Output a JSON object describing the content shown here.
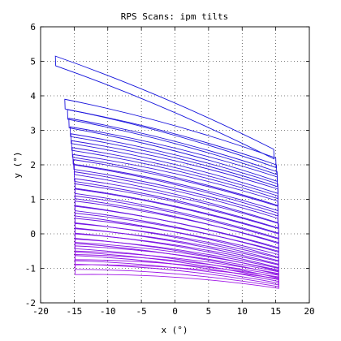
{
  "chart_data": {
    "type": "line",
    "title": "RPS Scans: ipm tilts",
    "xlabel": "x (°)",
    "ylabel": "y (°)",
    "xlim": [
      -20,
      20
    ],
    "ylim": [
      -2,
      6
    ],
    "xticks": [
      -20,
      -15,
      -10,
      -5,
      0,
      5,
      10,
      15,
      20
    ],
    "yticks": [
      -2,
      -1,
      0,
      1,
      2,
      3,
      4,
      5,
      6
    ],
    "grid": true,
    "color_start": "#1414dc",
    "color_end": "#a014e6",
    "scan_count": 30,
    "scan_left_edge": {
      "x": [
        -17.8,
        -16.4,
        -16.0,
        -15.8,
        -15.6,
        -15.5,
        -15.4,
        -15.3,
        -15.2,
        -15.1,
        -15.0,
        -15.0,
        -14.9,
        -14.9,
        -14.9,
        -14.9,
        -14.9,
        -14.9,
        -14.9,
        -14.9,
        -14.9,
        -14.9,
        -14.9,
        -14.9,
        -14.9,
        -14.9,
        -14.9,
        -14.9,
        -14.9,
        -14.9
      ],
      "top_y": [
        5.15,
        3.9,
        3.6,
        3.35,
        3.1,
        2.9,
        2.7,
        2.5,
        2.3,
        2.15,
        2.0,
        1.8,
        1.6,
        1.45,
        1.3,
        1.1,
        0.95,
        0.8,
        0.6,
        0.45,
        0.3,
        0.15,
        0.0,
        -0.15,
        -0.25,
        -0.35,
        -0.5,
        -0.6,
        -0.75,
        -0.9
      ]
    },
    "scan_right_edge": {
      "x_top": [
        14.7,
        15.0,
        15.1,
        15.2,
        15.2,
        15.3,
        15.3,
        15.3,
        15.3,
        15.3,
        15.3,
        15.3,
        15.4,
        15.4,
        15.4,
        15.4,
        15.4,
        15.4,
        15.4,
        15.4,
        15.4,
        15.4,
        15.4,
        15.4,
        15.4,
        15.4,
        15.4,
        15.4,
        15.4,
        15.4
      ],
      "top_y": [
        2.45,
        2.2,
        2.0,
        1.8,
        1.65,
        1.45,
        1.3,
        1.1,
        0.95,
        0.8,
        0.6,
        0.45,
        0.3,
        0.15,
        0.0,
        -0.15,
        -0.25,
        -0.4,
        -0.5,
        -0.6,
        -0.7,
        -0.8,
        -0.9,
        -1.0,
        -1.05,
        -1.1,
        -1.15,
        -1.2,
        -1.25,
        -1.3
      ]
    },
    "scan_height": 0.28,
    "bow": 0.12
  }
}
